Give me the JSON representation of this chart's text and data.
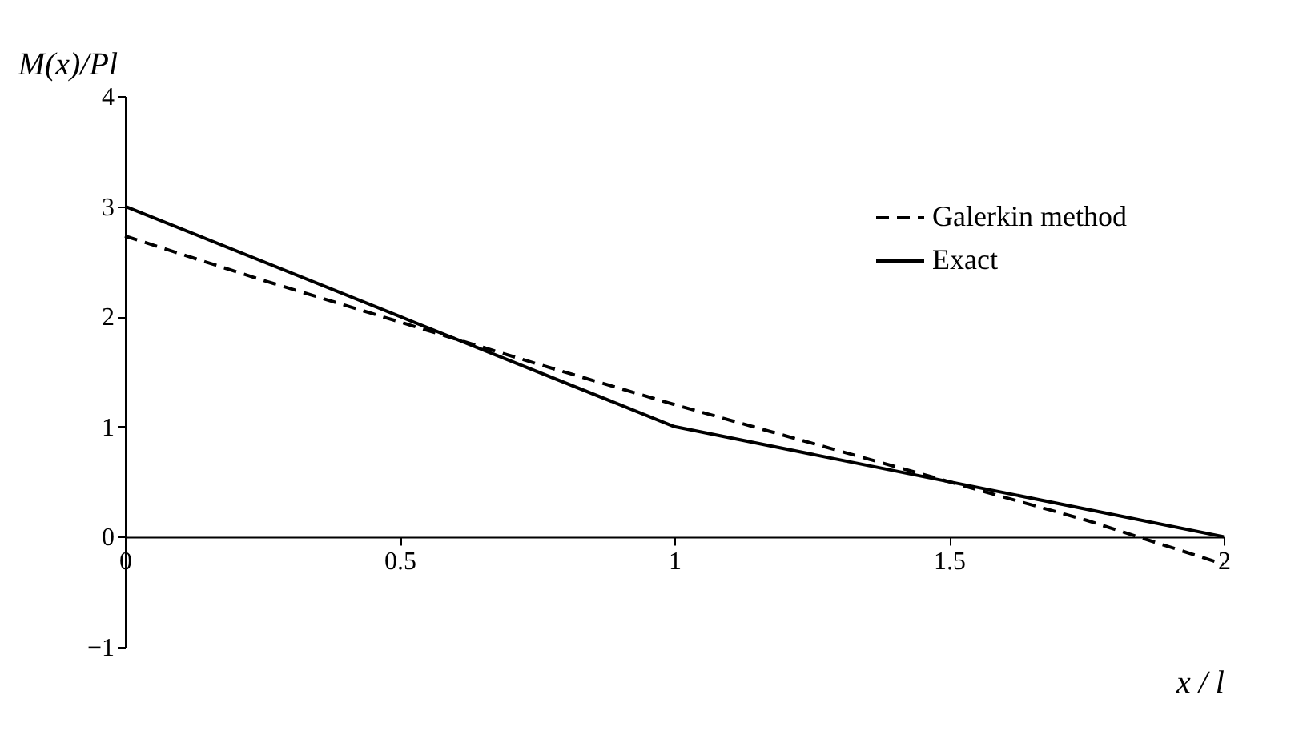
{
  "chart_data": {
    "type": "line",
    "ylabel": "M(x)/Pl",
    "xlabel": "x / l",
    "series": [
      {
        "name": "Galerkin method",
        "color": "#000000",
        "line_style": "dashed",
        "x": [
          0,
          0.25,
          0.5,
          0.75,
          1,
          1.25,
          1.5,
          1.75,
          2
        ],
        "values": [
          2.73,
          2.33,
          1.95,
          1.57,
          1.2,
          0.85,
          0.5,
          0.15,
          -0.25
        ]
      },
      {
        "name": "Exact",
        "color": "#000000",
        "line_style": "solid",
        "x": [
          0,
          0.5,
          1,
          1.5,
          2
        ],
        "values": [
          3,
          2,
          1,
          0.5,
          0
        ]
      }
    ],
    "xlim": [
      0,
      2
    ],
    "xticks": [
      0,
      0.5,
      1,
      1.5,
      2
    ],
    "ylim": [
      -1,
      4
    ],
    "yticks": [
      -1,
      0,
      1,
      2,
      3,
      4
    ],
    "grid": false,
    "legend": "top right",
    "marker": "none"
  }
}
